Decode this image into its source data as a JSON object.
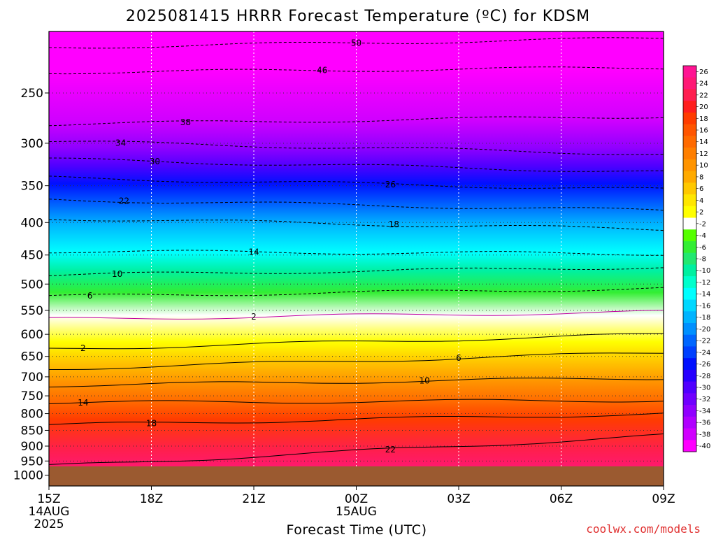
{
  "chart_data": {
    "type": "heatmap",
    "title": "2025081415 HRRR Forecast Temperature (ºC) for KDSM",
    "xlabel": "Forecast Time (UTC)",
    "ylabel": "",
    "credit": "coolwx.com/models",
    "x_ticks": [
      {
        "hour": 0,
        "label": "15Z",
        "sub1": "14AUG",
        "sub2": "2025"
      },
      {
        "hour": 3,
        "label": "18Z",
        "sub1": "",
        "sub2": ""
      },
      {
        "hour": 6,
        "label": "21Z",
        "sub1": "",
        "sub2": ""
      },
      {
        "hour": 9,
        "label": "00Z",
        "sub1": "15AUG",
        "sub2": ""
      },
      {
        "hour": 12,
        "label": "03Z",
        "sub1": "",
        "sub2": ""
      },
      {
        "hour": 15,
        "label": "06Z",
        "sub1": "",
        "sub2": ""
      },
      {
        "hour": 18,
        "label": "09Z",
        "sub1": "",
        "sub2": ""
      }
    ],
    "x_range_hours": [
      0,
      18
    ],
    "y_axis": "pressure (hPa), log scale, inverted",
    "y_range": [
      1040,
      200
    ],
    "y_ticks": [
      250,
      300,
      350,
      400,
      450,
      500,
      550,
      600,
      650,
      700,
      750,
      800,
      850,
      900,
      950,
      1000
    ],
    "surface_pressure_hPa": 975,
    "colorbar": {
      "labels": [
        "26",
        "24",
        "22",
        "20",
        "18",
        "16",
        "14",
        "12",
        "10",
        "8",
        "6",
        "4",
        "2",
        "-2",
        "-4",
        "-6",
        "-8",
        "-10",
        "-12",
        "-14",
        "-16",
        "-18",
        "-20",
        "-22",
        "-24",
        "-26",
        "-28",
        "-30",
        "-32",
        "-34",
        "-36",
        "-38",
        "-40"
      ],
      "colors": [
        "#ff1493",
        "#ff1975",
        "#ff1e50",
        "#ff1e1e",
        "#ff3c00",
        "#ff5500",
        "#ff6a00",
        "#ff7f00",
        "#ff9400",
        "#ffaa00",
        "#ffc800",
        "#ffe600",
        "#ffff00",
        "#ffffff",
        "#55ff00",
        "#33ee33",
        "#22e870",
        "#00f0a0",
        "#00ffcc",
        "#00ffff",
        "#00d8ff",
        "#00b4ff",
        "#0090ff",
        "#0066ff",
        "#0040ff",
        "#0010ff",
        "#2800ff",
        "#5000ff",
        "#7000ff",
        "#9000ff",
        "#b000ff",
        "#d000ff",
        "#ff00ff"
      ]
    },
    "contours": [
      {
        "value": -50,
        "p_start": 212,
        "p_end": 205,
        "label_hour": 9.0
      },
      {
        "value": -46,
        "p_start": 232,
        "p_end": 228,
        "label_hour": 8.0
      },
      {
        "value": -38,
        "p_start": 280,
        "p_end": 272,
        "label_hour": 4.0
      },
      {
        "value": -34,
        "p_start": 298,
        "p_end": 312,
        "label_hour": 2.1
      },
      {
        "value": -30,
        "p_start": 318,
        "p_end": 333,
        "label_hour": 3.1
      },
      {
        "value": -26,
        "p_start": 340,
        "p_end": 355,
        "label_hour": 10.0
      },
      {
        "value": -22,
        "p_start": 368,
        "p_end": 383,
        "label_hour": 2.2
      },
      {
        "value": -18,
        "p_start": 394,
        "p_end": 410,
        "label_hour": 10.1
      },
      {
        "value": -14,
        "p_start": 444,
        "p_end": 448,
        "label_hour": 6.0
      },
      {
        "value": -10,
        "p_start": 484,
        "p_end": 470,
        "label_hour": 2.0
      },
      {
        "value": -6,
        "p_start": 523,
        "p_end": 508,
        "label_hour": 1.2
      },
      {
        "value": -2,
        "p_start": 568,
        "p_end": 553,
        "label_hour": 6.0
      },
      {
        "value": 2,
        "p_start": 633,
        "p_end": 600,
        "label_hour": 1.0
      },
      {
        "value": 6,
        "p_start": 680,
        "p_end": 641,
        "label_hour": 12.0
      },
      {
        "value": 10,
        "p_start": 722,
        "p_end": 703,
        "label_hour": 11.0
      },
      {
        "value": 14,
        "p_start": 769,
        "p_end": 762,
        "label_hour": 1.0
      },
      {
        "value": 18,
        "p_start": 834,
        "p_end": 800,
        "label_hour": 3.0
      },
      {
        "value": 22,
        "p_start": 968,
        "p_end": 866,
        "label_hour": 10.0
      }
    ]
  }
}
